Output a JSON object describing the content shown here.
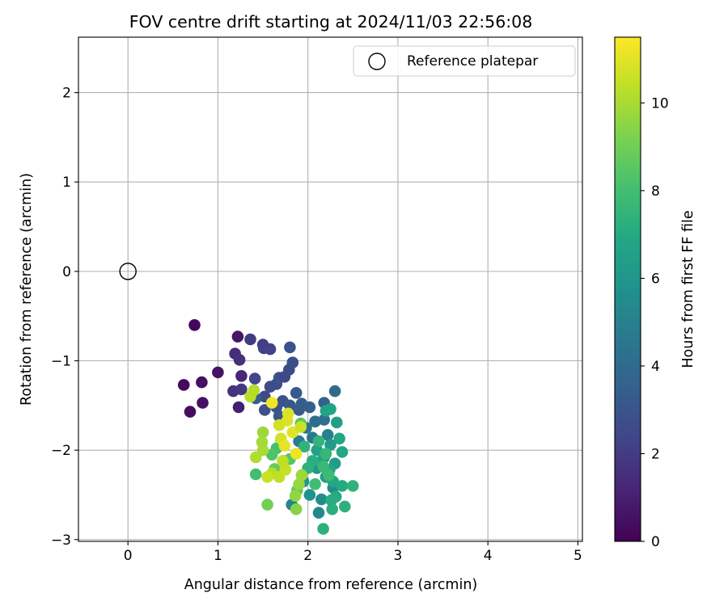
{
  "chart_data": {
    "type": "scatter",
    "title": "FOV centre drift starting at 2024/11/03 22:56:08",
    "xlabel": "Angular distance from reference (arcmin)",
    "ylabel": "Rotation from reference (arcmin)",
    "xlim": [
      -0.55,
      5.05
    ],
    "ylim": [
      -3.02,
      2.62
    ],
    "xticks": [
      0,
      1,
      2,
      3,
      4,
      5
    ],
    "yticks": [
      -3,
      -2,
      -1,
      0,
      1,
      2
    ],
    "xtick_labels": [
      "0",
      "1",
      "2",
      "3",
      "4",
      "5"
    ],
    "ytick_labels": [
      "−3",
      "−2",
      "−1",
      "0",
      "1",
      "2"
    ],
    "grid": true,
    "legend": {
      "position": "top-right",
      "entries": [
        "Reference platepar"
      ]
    },
    "reference_point": {
      "x": 0,
      "y": 0,
      "label": "Reference platepar"
    },
    "colorbar": {
      "label": "Hours from first FF file",
      "colormap": "viridis",
      "range": [
        0,
        11.5
      ],
      "ticks": [
        0,
        2,
        4,
        6,
        8,
        10
      ],
      "tick_labels": [
        "0",
        "2",
        "4",
        "6",
        "8",
        "10"
      ]
    },
    "points": [
      [
        0.74,
        -0.6,
        0.2
      ],
      [
        0.62,
        -1.27,
        0.3
      ],
      [
        0.69,
        -1.57,
        0.4
      ],
      [
        0.82,
        -1.24,
        0.5
      ],
      [
        0.83,
        -1.47,
        0.5
      ],
      [
        1.0,
        -1.13,
        0.6
      ],
      [
        1.22,
        -0.73,
        0.7
      ],
      [
        1.23,
        -1.52,
        1.0
      ],
      [
        1.26,
        -1.17,
        1.2
      ],
      [
        1.19,
        -0.92,
        1.5
      ],
      [
        1.24,
        -0.99,
        1.6
      ],
      [
        1.17,
        -1.34,
        1.7
      ],
      [
        1.26,
        -1.32,
        1.9
      ],
      [
        1.36,
        -0.76,
        2.0
      ],
      [
        1.5,
        -0.82,
        2.1
      ],
      [
        1.51,
        -0.86,
        2.2
      ],
      [
        1.58,
        -0.87,
        2.3
      ],
      [
        1.41,
        -1.2,
        2.4
      ],
      [
        1.52,
        -1.4,
        2.5
      ],
      [
        1.58,
        -1.29,
        2.6
      ],
      [
        1.65,
        -1.26,
        2.7
      ],
      [
        1.68,
        -1.19,
        2.8
      ],
      [
        1.74,
        -1.18,
        2.5
      ],
      [
        1.79,
        -1.1,
        2.6
      ],
      [
        1.83,
        -1.02,
        2.7
      ],
      [
        1.8,
        -0.85,
        2.9
      ],
      [
        1.52,
        -1.55,
        2.8
      ],
      [
        1.72,
        -1.45,
        2.9
      ],
      [
        1.65,
        -1.52,
        3.0
      ],
      [
        1.68,
        -1.62,
        3.1
      ],
      [
        1.8,
        -1.5,
        3.2
      ],
      [
        1.87,
        -1.36,
        3.2
      ],
      [
        1.9,
        -1.55,
        3.3
      ],
      [
        1.93,
        -1.48,
        3.4
      ],
      [
        2.02,
        -1.52,
        3.5
      ],
      [
        1.42,
        -1.42,
        3.4
      ],
      [
        2.18,
        -1.47,
        3.6
      ],
      [
        2.3,
        -1.34,
        4.0
      ],
      [
        2.08,
        -1.68,
        4.1
      ],
      [
        2.18,
        -1.66,
        4.3
      ],
      [
        1.98,
        -1.75,
        4.4
      ],
      [
        2.05,
        -1.86,
        4.6
      ],
      [
        1.9,
        -1.9,
        4.8
      ],
      [
        2.22,
        -1.83,
        5.0
      ],
      [
        1.82,
        -2.61,
        5.2
      ],
      [
        2.12,
        -2.7,
        5.4
      ],
      [
        2.28,
        -2.42,
        5.5
      ],
      [
        2.15,
        -2.55,
        5.6
      ],
      [
        2.02,
        -2.5,
        5.8
      ],
      [
        1.95,
        -2.35,
        5.9
      ],
      [
        2.1,
        -2.2,
        6.0
      ],
      [
        2.18,
        -2.08,
        6.1
      ],
      [
        2.25,
        -1.94,
        6.2
      ],
      [
        2.3,
        -2.15,
        6.3
      ],
      [
        2.2,
        -2.3,
        6.4
      ],
      [
        2.32,
        -1.69,
        6.5
      ],
      [
        2.2,
        -1.56,
        6.6
      ],
      [
        2.25,
        -1.54,
        6.7
      ],
      [
        2.35,
        -1.87,
        6.8
      ],
      [
        2.38,
        -2.02,
        6.9
      ],
      [
        2.1,
        -2.0,
        6.6
      ],
      [
        2.14,
        -2.13,
        6.7
      ],
      [
        2.24,
        -2.22,
        6.8
      ],
      [
        2.28,
        -2.35,
        6.9
      ],
      [
        2.31,
        -2.52,
        7.0
      ],
      [
        2.38,
        -2.4,
        7.0
      ],
      [
        2.26,
        -2.56,
        7.1
      ],
      [
        2.27,
        -2.66,
        7.2
      ],
      [
        2.41,
        -2.63,
        7.3
      ],
      [
        2.5,
        -2.4,
        7.4
      ],
      [
        2.17,
        -2.88,
        7.3
      ],
      [
        2.05,
        -2.12,
        7.2
      ],
      [
        2.0,
        -2.2,
        7.3
      ],
      [
        1.96,
        -1.96,
        7.4
      ],
      [
        2.12,
        -1.9,
        7.5
      ],
      [
        2.2,
        -2.04,
        7.6
      ],
      [
        2.17,
        -2.18,
        7.7
      ],
      [
        2.23,
        -2.28,
        7.8
      ],
      [
        2.08,
        -2.38,
        7.9
      ],
      [
        1.42,
        -2.27,
        8.0
      ],
      [
        1.65,
        -1.98,
        8.1
      ],
      [
        1.7,
        -1.88,
        8.2
      ],
      [
        1.6,
        -2.05,
        8.3
      ],
      [
        1.8,
        -2.1,
        8.4
      ],
      [
        1.92,
        -1.7,
        8.5
      ],
      [
        1.88,
        -2.45,
        8.6
      ],
      [
        1.73,
        -2.12,
        8.7
      ],
      [
        1.63,
        -2.21,
        8.8
      ],
      [
        1.55,
        -2.61,
        9.0
      ],
      [
        1.87,
        -2.66,
        9.4
      ],
      [
        1.86,
        -2.51,
        9.6
      ],
      [
        1.9,
        -2.38,
        9.7
      ],
      [
        1.93,
        -2.28,
        9.8
      ],
      [
        1.5,
        -1.8,
        9.8
      ],
      [
        1.49,
        -1.91,
        9.9
      ],
      [
        1.5,
        -2.0,
        10.0
      ],
      [
        1.42,
        -2.08,
        10.1
      ],
      [
        1.4,
        -1.33,
        10.2
      ],
      [
        1.36,
        -1.4,
        10.3
      ],
      [
        1.6,
        -2.26,
        10.3
      ],
      [
        1.68,
        -2.3,
        10.4
      ],
      [
        1.75,
        -2.22,
        10.5
      ],
      [
        1.55,
        -2.3,
        10.6
      ],
      [
        1.68,
        -1.72,
        10.7
      ],
      [
        1.7,
        -1.87,
        10.8
      ],
      [
        1.77,
        -1.67,
        10.9
      ],
      [
        1.83,
        -1.8,
        11.0
      ],
      [
        1.74,
        -1.95,
        11.1
      ],
      [
        1.87,
        -2.04,
        11.2
      ],
      [
        1.6,
        -1.47,
        11.3
      ],
      [
        1.78,
        -1.59,
        10.9
      ],
      [
        1.92,
        -1.74,
        10.6
      ],
      [
        1.72,
        -2.12,
        10.4
      ]
    ]
  }
}
